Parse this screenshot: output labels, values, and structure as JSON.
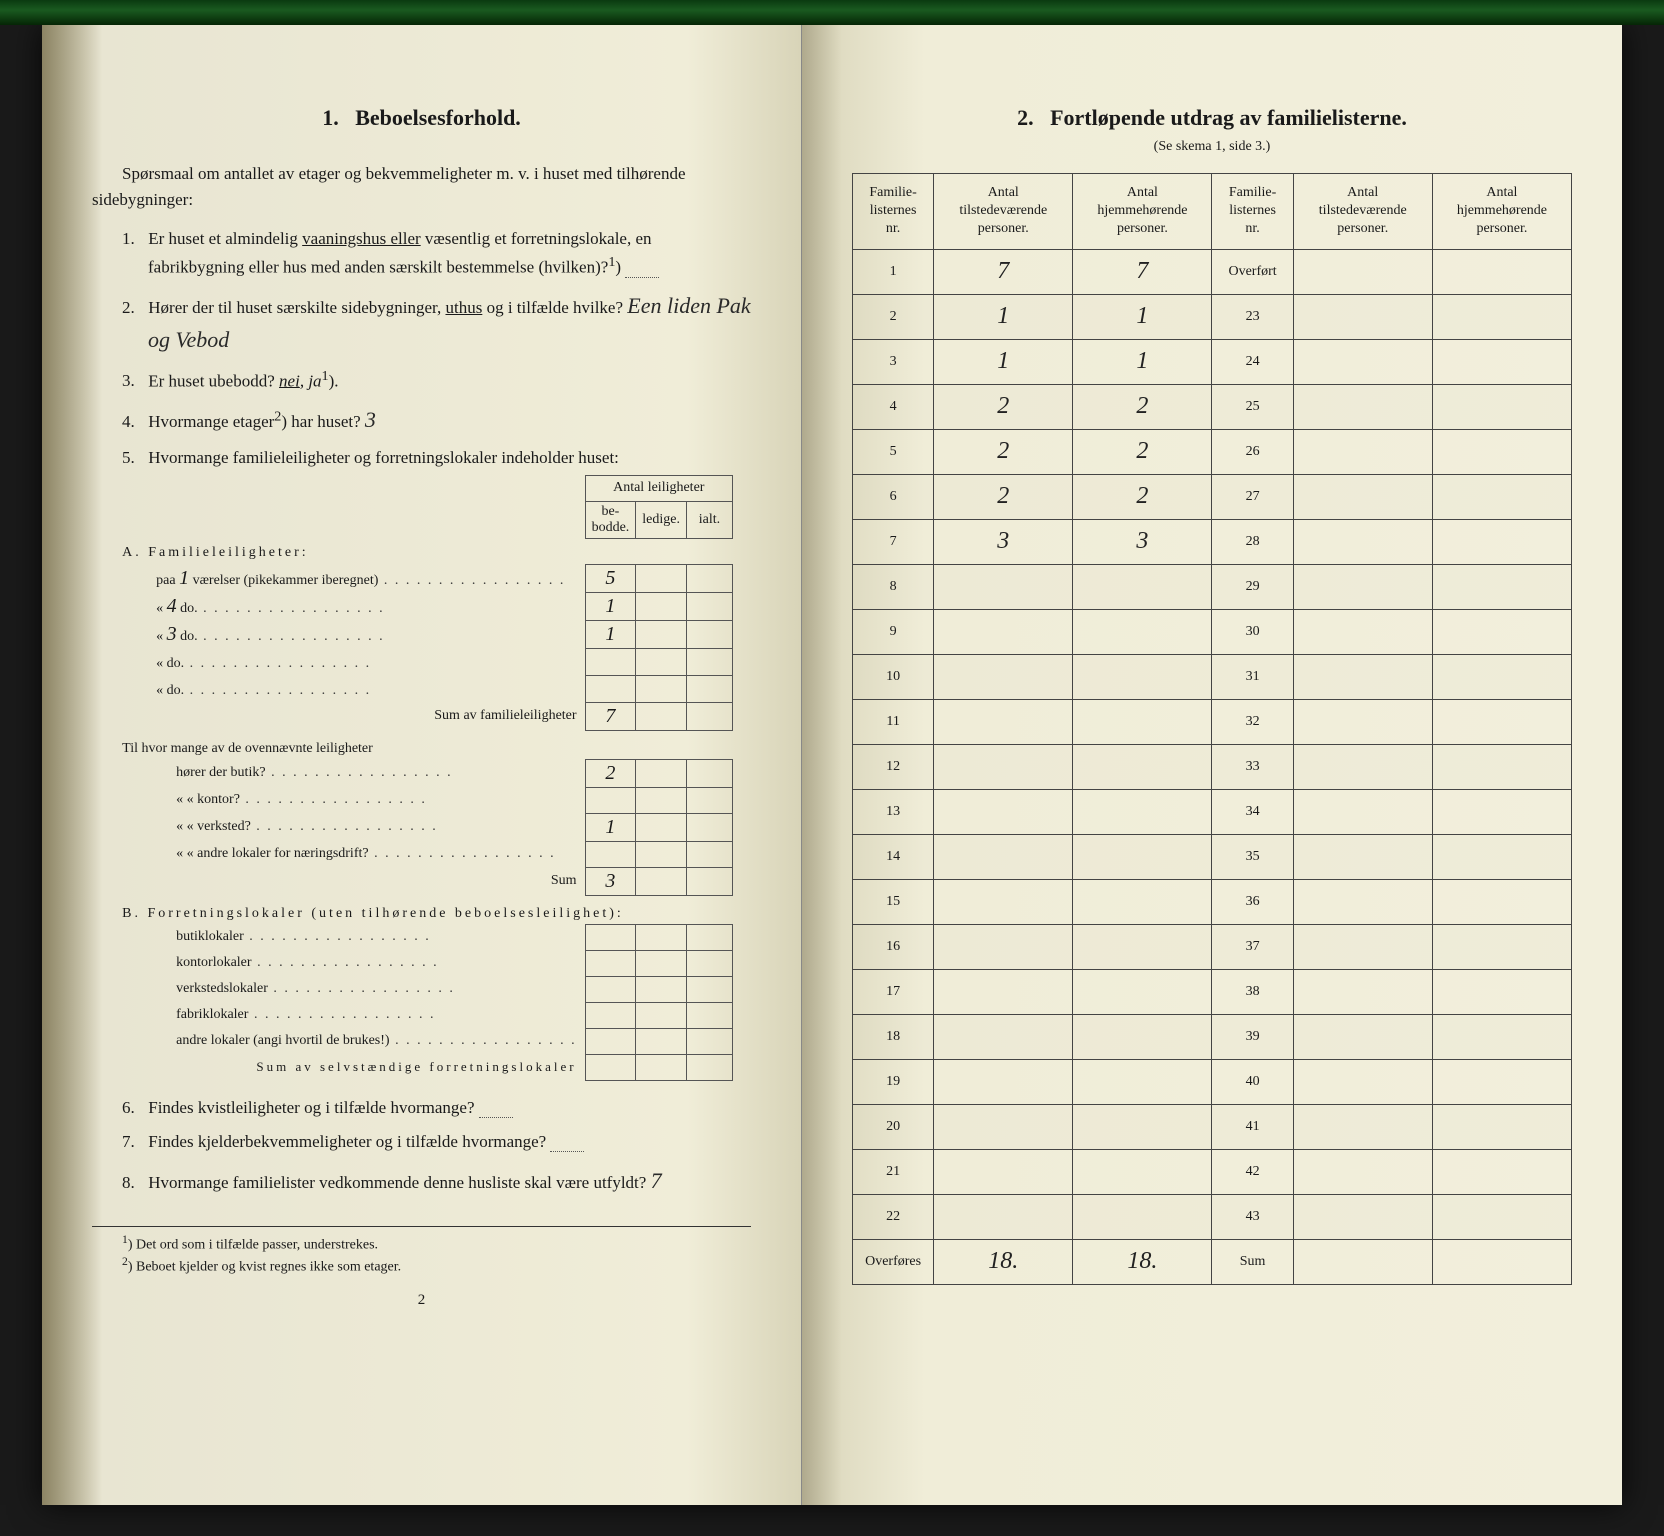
{
  "left": {
    "section_number": "1.",
    "section_title": "Beboelsesforhold.",
    "intro": "Spørsmaal om antallet av etager og bekvemmeligheter m. v. i huset med tilhørende sidebygninger:",
    "q1_num": "1.",
    "q1_a": "Er huset et almindelig ",
    "q1_vaan": "vaaningshus eller",
    "q1_b": " væsentlig et forretningslokale, en fabrikbygning eller hus med anden særskilt bestemmelse (hvilken)?",
    "q1_sup": "1",
    "q1_ans": "",
    "q2_num": "2.",
    "q2_a": "Hører der til huset særskilte sidebygninger, ",
    "q2_uthus": "uthus",
    "q2_b": " og i tilfælde hvilke?",
    "q2_ans": "Een liden Pak og Vebod",
    "q3_num": "3.",
    "q3_text": "Er huset ubebodd?  ",
    "q3_nei": "nei",
    "q3_ja": ",  ja",
    "q3_sup": "1",
    "q4_num": "4.",
    "q4_text": "Hvormange etager",
    "q4_sup": "2",
    "q4_text2": ") har huset?",
    "q4_ans": "3",
    "q5_num": "5.",
    "q5_text": "Hvormange familieleiligheter og forretningslokaler indeholder huset:",
    "mini": {
      "header_span": "Antal leiligheter",
      "h_bebodde": "be-\nbodde.",
      "h_ledige": "ledige.",
      "h_ialt": "ialt.",
      "A_label": "A. Familieleiligheter:",
      "rows_A": [
        {
          "label_pre": "paa",
          "hw_pre": "1",
          "label": " værelser (pikekammer iberegnet)",
          "b": "5",
          "l": "",
          "i": ""
        },
        {
          "label_pre": "«",
          "hw_pre": "4",
          "label": "      do.",
          "b": "1",
          "l": "",
          "i": ""
        },
        {
          "label_pre": "«",
          "hw_pre": "3",
          "label": "      do.",
          "b": "1",
          "l": "",
          "i": ""
        },
        {
          "label_pre": "«",
          "hw_pre": "",
          "label": "      do.",
          "b": "",
          "l": "",
          "i": ""
        },
        {
          "label_pre": "«",
          "hw_pre": "",
          "label": "      do.",
          "b": "",
          "l": "",
          "i": ""
        }
      ],
      "sum_A_label": "Sum av familieleiligheter",
      "sum_A": "7",
      "mid_label": "Til hvor mange av de ovennævnte leiligheter",
      "mid_rows": [
        {
          "label": "hører der butik?",
          "b": "2"
        },
        {
          "label": "«      « kontor?",
          "b": ""
        },
        {
          "label": "«      « verksted?",
          "b": "1"
        },
        {
          "label": "«      « andre lokaler for næringsdrift?",
          "b": ""
        }
      ],
      "sum_mid_label": "Sum",
      "sum_mid": "3",
      "B_label": "B. Forretningslokaler (uten tilhørende beboelsesleilighet):",
      "rows_B": [
        {
          "label": "butiklokaler"
        },
        {
          "label": "kontorlokaler"
        },
        {
          "label": "verkstedslokaler"
        },
        {
          "label": "fabriklokaler"
        },
        {
          "label": "andre lokaler (angi hvortil de brukes!)"
        }
      ],
      "sum_B_label": "Sum av selvstændige forretningslokaler"
    },
    "q6_num": "6.",
    "q6_text": "Findes kvistleiligheter og i tilfælde hvormange?",
    "q7_num": "7.",
    "q7_text": "Findes kjelderbekvemmeligheter og i tilfælde hvormange?",
    "q8_num": "8.",
    "q8_text": "Hvormange familielister vedkommende denne husliste skal være utfyldt?",
    "q8_ans": "7",
    "fn1_sup": "1",
    "fn1": ") Det ord som i tilfælde passer, understrekes.",
    "fn2_sup": "2",
    "fn2": ") Beboet kjelder og kvist regnes ikke som etager.",
    "page_num": "2"
  },
  "right": {
    "section_number": "2.",
    "section_title": "Fortløpende utdrag av familielisterne.",
    "subtitle": "(Se skema 1, side 3.)",
    "headers": {
      "nr": "Familie-\nlisternes\nnr.",
      "tilstede": "Antal\ntilstedeværende\npersoner.",
      "hjemme": "Antal\nhjemmehørende\npersoner."
    },
    "overfort_label": "Overført",
    "overfores_label": "Overføres",
    "sum_label": "Sum",
    "rows_left": [
      {
        "nr": "1",
        "t": "7",
        "h": "7"
      },
      {
        "nr": "2",
        "t": "1",
        "h": "1"
      },
      {
        "nr": "3",
        "t": "1",
        "h": "1"
      },
      {
        "nr": "4",
        "t": "2",
        "h": "2"
      },
      {
        "nr": "5",
        "t": "2",
        "h": "2"
      },
      {
        "nr": "6",
        "t": "2",
        "h": "2"
      },
      {
        "nr": "7",
        "t": "3",
        "h": "3"
      },
      {
        "nr": "8",
        "t": "",
        "h": ""
      },
      {
        "nr": "9",
        "t": "",
        "h": ""
      },
      {
        "nr": "10",
        "t": "",
        "h": ""
      },
      {
        "nr": "11",
        "t": "",
        "h": ""
      },
      {
        "nr": "12",
        "t": "",
        "h": ""
      },
      {
        "nr": "13",
        "t": "",
        "h": ""
      },
      {
        "nr": "14",
        "t": "",
        "h": ""
      },
      {
        "nr": "15",
        "t": "",
        "h": ""
      },
      {
        "nr": "16",
        "t": "",
        "h": ""
      },
      {
        "nr": "17",
        "t": "",
        "h": ""
      },
      {
        "nr": "18",
        "t": "",
        "h": ""
      },
      {
        "nr": "19",
        "t": "",
        "h": ""
      },
      {
        "nr": "20",
        "t": "",
        "h": ""
      },
      {
        "nr": "21",
        "t": "",
        "h": ""
      },
      {
        "nr": "22",
        "t": "",
        "h": ""
      }
    ],
    "rows_right_nrs": [
      "23",
      "24",
      "25",
      "26",
      "27",
      "28",
      "29",
      "30",
      "31",
      "32",
      "33",
      "34",
      "35",
      "36",
      "37",
      "38",
      "39",
      "40",
      "41",
      "42",
      "43"
    ],
    "overfores_t": "18.",
    "overfores_h": "18."
  },
  "colors": {
    "ink": "#1a1a1a",
    "paper_left": "#f0edd8",
    "paper_right": "#f2efdc",
    "border": "#444"
  }
}
